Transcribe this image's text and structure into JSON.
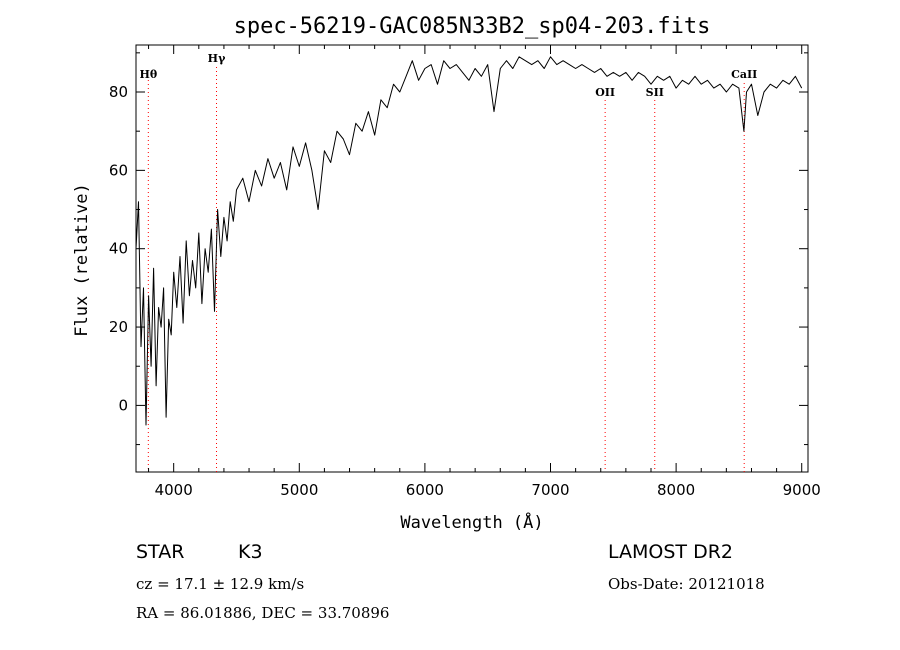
{
  "chart_data": {
    "type": "line",
    "title": "spec-56219-GAC085N33B2_sp04-203.fits",
    "xlabel": "Wavelength (Å)",
    "ylabel": "Flux (relative)",
    "xlim": [
      3700,
      9050
    ],
    "ylim": [
      -17,
      92
    ],
    "x_ticks": [
      4000,
      5000,
      6000,
      7000,
      8000,
      9000
    ],
    "x_tick_labels": [
      "4000",
      "5000",
      "6000",
      "7000",
      "8000",
      "9000"
    ],
    "y_ticks": [
      0,
      20,
      40,
      60,
      80
    ],
    "y_tick_labels": [
      "0",
      "20",
      "40",
      "60",
      "80"
    ],
    "line_color": "#000000",
    "marker_color": "#ff0000",
    "spectral_lines": [
      {
        "name": "Hθ",
        "wavelength": 3798
      },
      {
        "name": "Hγ",
        "wavelength": 4341
      },
      {
        "name": "OII",
        "wavelength": 7435
      },
      {
        "name": "SII",
        "wavelength": 7830
      },
      {
        "name": "CaII",
        "wavelength": 8542
      }
    ],
    "series": [
      {
        "name": "flux",
        "x": [
          3700,
          3720,
          3740,
          3760,
          3780,
          3800,
          3820,
          3840,
          3860,
          3880,
          3900,
          3920,
          3940,
          3960,
          3980,
          4000,
          4025,
          4050,
          4075,
          4100,
          4125,
          4150,
          4175,
          4200,
          4225,
          4250,
          4275,
          4300,
          4325,
          4350,
          4375,
          4400,
          4425,
          4450,
          4475,
          4500,
          4550,
          4600,
          4650,
          4700,
          4750,
          4800,
          4850,
          4900,
          4950,
          5000,
          5050,
          5100,
          5150,
          5200,
          5250,
          5300,
          5350,
          5400,
          5450,
          5500,
          5550,
          5600,
          5650,
          5700,
          5750,
          5800,
          5850,
          5900,
          5950,
          6000,
          6050,
          6100,
          6150,
          6200,
          6250,
          6300,
          6350,
          6400,
          6450,
          6500,
          6550,
          6600,
          6650,
          6700,
          6750,
          6800,
          6850,
          6900,
          6950,
          7000,
          7050,
          7100,
          7150,
          7200,
          7250,
          7300,
          7350,
          7400,
          7450,
          7500,
          7550,
          7600,
          7650,
          7700,
          7750,
          7800,
          7850,
          7900,
          7950,
          8000,
          8050,
          8100,
          8150,
          8200,
          8250,
          8300,
          8350,
          8400,
          8450,
          8500,
          8540,
          8560,
          8600,
          8650,
          8700,
          8750,
          8800,
          8850,
          8900,
          8950,
          9000
        ],
        "values": [
          40,
          52,
          15,
          30,
          -5,
          28,
          10,
          35,
          5,
          25,
          20,
          30,
          -3,
          22,
          18,
          34,
          25,
          38,
          21,
          42,
          28,
          37,
          30,
          44,
          26,
          40,
          34,
          45,
          24,
          50,
          38,
          48,
          42,
          52,
          47,
          55,
          58,
          52,
          60,
          56,
          63,
          58,
          62,
          55,
          66,
          61,
          67,
          60,
          50,
          65,
          62,
          70,
          68,
          64,
          72,
          70,
          75,
          69,
          78,
          76,
          82,
          80,
          84,
          88,
          83,
          86,
          87,
          82,
          88,
          86,
          87,
          85,
          83,
          86,
          84,
          87,
          75,
          86,
          88,
          86,
          89,
          88,
          87,
          88,
          86,
          89,
          87,
          88,
          87,
          86,
          87,
          86,
          85,
          86,
          84,
          85,
          84,
          85,
          83,
          85,
          84,
          82,
          84,
          83,
          84,
          81,
          83,
          82,
          84,
          82,
          83,
          81,
          82,
          80,
          82,
          81,
          70,
          80,
          82,
          74,
          80,
          82,
          81,
          83,
          82,
          84,
          81
        ]
      }
    ]
  },
  "info": {
    "object_class": "STAR",
    "subclass": "K3",
    "survey": "LAMOST DR2",
    "cz": "cz = 17.1 ± 12.9 km/s",
    "obs_date": "Obs-Date: 20121018",
    "coords": "RA =  86.01886, DEC =  33.70896"
  }
}
